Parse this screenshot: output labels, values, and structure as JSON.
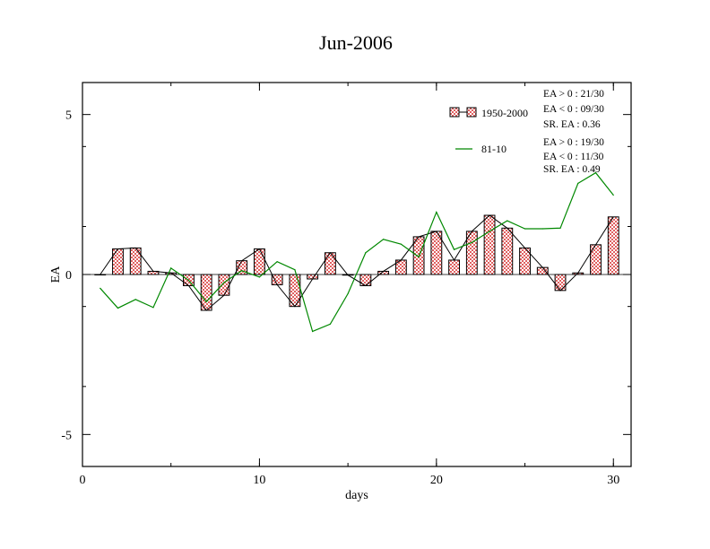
{
  "chart_data": {
    "type": "bar",
    "title": "Jun-2006",
    "xlabel": "days",
    "ylabel": "EA",
    "xlim": [
      0,
      31
    ],
    "ylim": [
      -6,
      6
    ],
    "x_ticks": [
      0,
      10,
      20,
      30
    ],
    "y_ticks": [
      -5,
      0,
      5
    ],
    "grid": false,
    "legend_placement": "top-right",
    "series": [
      {
        "name": "1950-2000",
        "kind": "bar",
        "color": "#e06060",
        "x": [
          1,
          2,
          3,
          4,
          5,
          6,
          7,
          8,
          9,
          10,
          11,
          12,
          13,
          14,
          15,
          16,
          17,
          18,
          19,
          20,
          21,
          22,
          23,
          24,
          25,
          26,
          27,
          28,
          29,
          30
        ],
        "values": [
          0.0,
          0.8,
          0.83,
          0.1,
          0.05,
          -0.35,
          -1.12,
          -0.65,
          0.43,
          0.8,
          -0.32,
          -1.0,
          -0.14,
          0.68,
          -0.02,
          -0.35,
          0.1,
          0.45,
          1.18,
          1.35,
          0.45,
          1.35,
          1.85,
          1.45,
          0.83,
          0.22,
          -0.5,
          0.05,
          0.93,
          1.8
        ]
      },
      {
        "name": "81-10",
        "kind": "line",
        "color": "#008800",
        "x": [
          1,
          2,
          3,
          4,
          5,
          6,
          7,
          8,
          9,
          10,
          11,
          12,
          13,
          14,
          15,
          16,
          17,
          18,
          19,
          20,
          21,
          22,
          23,
          24,
          25,
          26,
          27,
          28,
          29,
          30
        ],
        "values": [
          -0.43,
          -1.05,
          -0.78,
          -1.03,
          0.2,
          -0.18,
          -0.85,
          -0.25,
          0.12,
          -0.08,
          0.4,
          0.15,
          -1.78,
          -1.55,
          -0.6,
          0.68,
          1.1,
          0.95,
          0.55,
          1.95,
          0.78,
          1.0,
          1.35,
          1.68,
          1.43,
          1.43,
          1.45,
          2.85,
          3.18,
          2.48
        ]
      }
    ],
    "stats": {
      "s1950": [
        "EA > 0 : 21/30",
        "EA < 0 : 09/30",
        "SR. EA :  0.36"
      ],
      "s8110": [
        "EA > 0 : 19/30",
        "EA < 0 : 11/30",
        "SR. EA :  0.49"
      ]
    }
  }
}
